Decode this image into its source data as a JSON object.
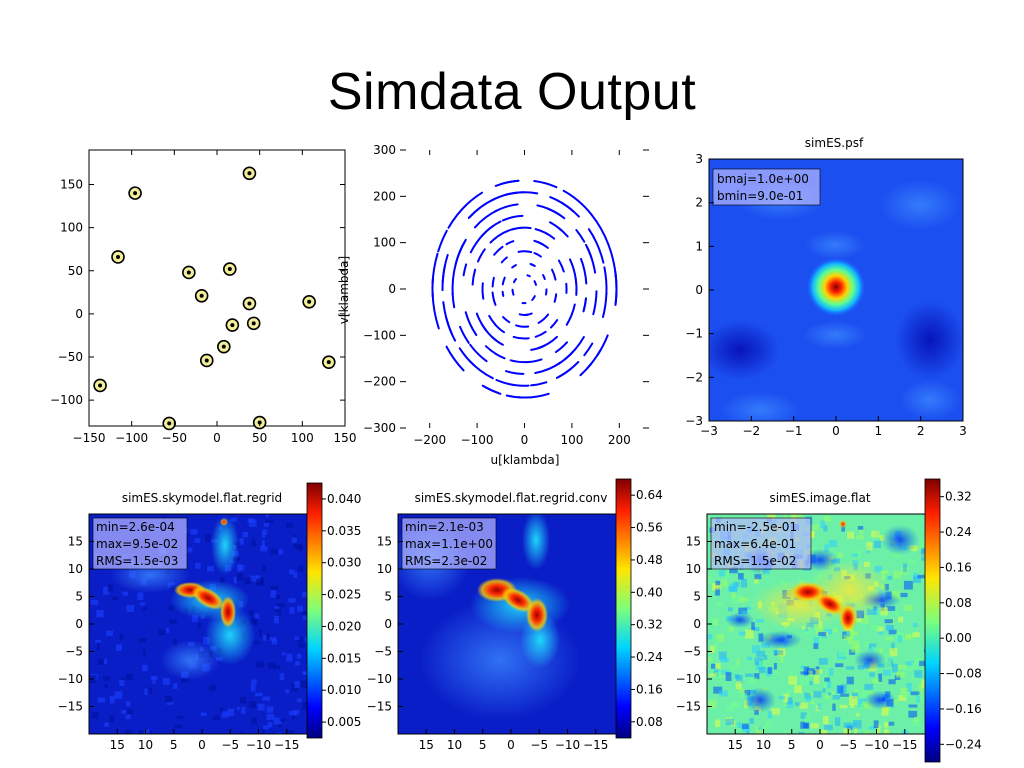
{
  "slide": {
    "title": "Simdata Output"
  },
  "chart_data": [
    {
      "type": "scatter",
      "title": "",
      "xlim": [
        -150,
        150
      ],
      "ylim": [
        -130,
        190
      ],
      "xticks": [
        -150,
        -100,
        -50,
        0,
        50,
        100,
        150
      ],
      "yticks": [
        -100,
        -50,
        0,
        50,
        100,
        150
      ],
      "points": [
        {
          "x": -96,
          "y": 140
        },
        {
          "x": 38,
          "y": 163
        },
        {
          "x": -116,
          "y": 66
        },
        {
          "x": -33,
          "y": 48
        },
        {
          "x": 15,
          "y": 52
        },
        {
          "x": -18,
          "y": 21
        },
        {
          "x": 38,
          "y": 12
        },
        {
          "x": 108,
          "y": 14
        },
        {
          "x": 18,
          "y": -13
        },
        {
          "x": 43,
          "y": -11
        },
        {
          "x": 8,
          "y": -38
        },
        {
          "x": -12,
          "y": -54
        },
        {
          "x": 131,
          "y": -56
        },
        {
          "x": -137,
          "y": -83
        },
        {
          "x": -56,
          "y": -127
        },
        {
          "x": 50,
          "y": -126
        }
      ],
      "marker_color": "#f2ee9a"
    },
    {
      "type": "scatter",
      "title": "",
      "xlabel": "u[klambda]",
      "ylabel": "v[klambda]",
      "xlim": [
        -250,
        250
      ],
      "ylim": [
        -300,
        300
      ],
      "xticks": [
        -200,
        -100,
        0,
        100,
        200
      ],
      "yticks": [
        -300,
        -200,
        -100,
        0,
        100,
        200,
        300
      ],
      "description": "uv-coverage arcs",
      "marker_color": "#0000ff"
    },
    {
      "type": "heatmap",
      "title": "simES.psf",
      "xlim": [
        -3,
        3
      ],
      "ylim": [
        -3,
        3
      ],
      "xticks": [
        -3,
        -2,
        -1,
        0,
        1,
        2,
        3
      ],
      "yticks": [
        -3,
        -2,
        -1,
        0,
        1,
        2,
        3
      ],
      "annotations": [
        "bmaj=1.0e+00",
        "bmin=9.0e-01"
      ]
    },
    {
      "type": "heatmap",
      "title": "simES.skymodel.flat.regrid",
      "xticks": [
        15,
        10,
        5,
        0,
        -5,
        -10,
        -15
      ],
      "yticks": [
        15,
        10,
        5,
        0,
        -5,
        -10,
        -15
      ],
      "annotations": [
        "min=2.6e-04",
        "max=9.5e-02",
        "RMS=1.5e-03"
      ],
      "colorbar_ticks": [
        "0.040",
        "0.035",
        "0.030",
        "0.025",
        "0.020",
        "0.015",
        "0.010",
        "0.005"
      ]
    },
    {
      "type": "heatmap",
      "title": "simES.skymodel.flat.regrid.conv",
      "xticks": [
        15,
        10,
        5,
        0,
        -5,
        -10,
        -15
      ],
      "yticks": [
        15,
        10,
        5,
        0,
        -5,
        -10,
        -15
      ],
      "annotations": [
        "min=2.1e-03",
        "max=1.1e+00",
        "RMS=2.3e-02"
      ],
      "colorbar_ticks": [
        "0.64",
        "0.56",
        "0.48",
        "0.40",
        "0.32",
        "0.24",
        "0.16",
        "0.08"
      ]
    },
    {
      "type": "heatmap",
      "title": "simES.image.flat",
      "xticks": [
        15,
        10,
        5,
        0,
        -5,
        -10,
        -15
      ],
      "yticks": [
        15,
        10,
        5,
        0,
        -5,
        -10,
        -15
      ],
      "annotations": [
        "min=-2.5e-01",
        "max=6.4e-01",
        "RMS=1.5e-02"
      ],
      "colorbar_ticks": [
        "0.32",
        "0.24",
        "0.16",
        "0.08",
        "0.00",
        "−0.08",
        "−0.16",
        "−0.24"
      ]
    }
  ]
}
